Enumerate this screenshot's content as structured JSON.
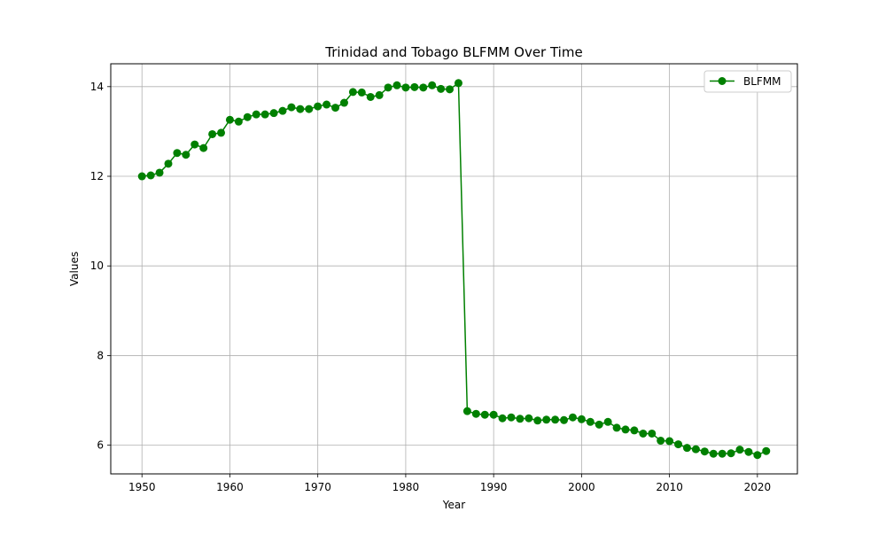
{
  "chart_data": {
    "type": "line",
    "title": "Trinidad and Tobago BLFMM Over Time",
    "xlabel": "Year",
    "ylabel": "Values",
    "xlim": [
      1946.45,
      2024.55
    ],
    "ylim": [
      5.36,
      14.51
    ],
    "x_ticks": [
      1950,
      1960,
      1970,
      1980,
      1990,
      2000,
      2010,
      2020
    ],
    "y_ticks": [
      6,
      8,
      10,
      12,
      14
    ],
    "grid": true,
    "legend": "top-right",
    "series": [
      {
        "name": "BLFMM",
        "color": "#008000",
        "marker": "circle",
        "x": [
          1950,
          1951,
          1952,
          1953,
          1954,
          1955,
          1956,
          1957,
          1958,
          1959,
          1960,
          1961,
          1962,
          1963,
          1964,
          1965,
          1966,
          1967,
          1968,
          1969,
          1970,
          1971,
          1972,
          1973,
          1974,
          1975,
          1976,
          1977,
          1978,
          1979,
          1980,
          1981,
          1982,
          1983,
          1984,
          1985,
          1986,
          1987,
          1988,
          1989,
          1990,
          1991,
          1992,
          1993,
          1994,
          1995,
          1996,
          1997,
          1998,
          1999,
          2000,
          2001,
          2002,
          2003,
          2004,
          2005,
          2006,
          2007,
          2008,
          2009,
          2010,
          2011,
          2012,
          2013,
          2014,
          2015,
          2016,
          2017,
          2018,
          2019,
          2020,
          2021
        ],
        "values": [
          12.0,
          12.02,
          12.08,
          12.28,
          12.52,
          12.48,
          12.71,
          12.63,
          12.94,
          12.97,
          13.26,
          13.22,
          13.32,
          13.38,
          13.38,
          13.41,
          13.46,
          13.54,
          13.5,
          13.5,
          13.56,
          13.6,
          13.53,
          13.64,
          13.88,
          13.87,
          13.77,
          13.81,
          13.98,
          14.03,
          13.98,
          13.99,
          13.98,
          14.03,
          13.95,
          13.94,
          14.08,
          6.76,
          6.7,
          6.68,
          6.68,
          6.6,
          6.62,
          6.59,
          6.6,
          6.55,
          6.57,
          6.57,
          6.56,
          6.62,
          6.58,
          6.52,
          6.46,
          6.52,
          6.39,
          6.35,
          6.33,
          6.26,
          6.26,
          6.1,
          6.09,
          6.02,
          5.94,
          5.91,
          5.86,
          5.81,
          5.81,
          5.82,
          5.9,
          5.85,
          5.78,
          5.87
        ]
      }
    ]
  }
}
